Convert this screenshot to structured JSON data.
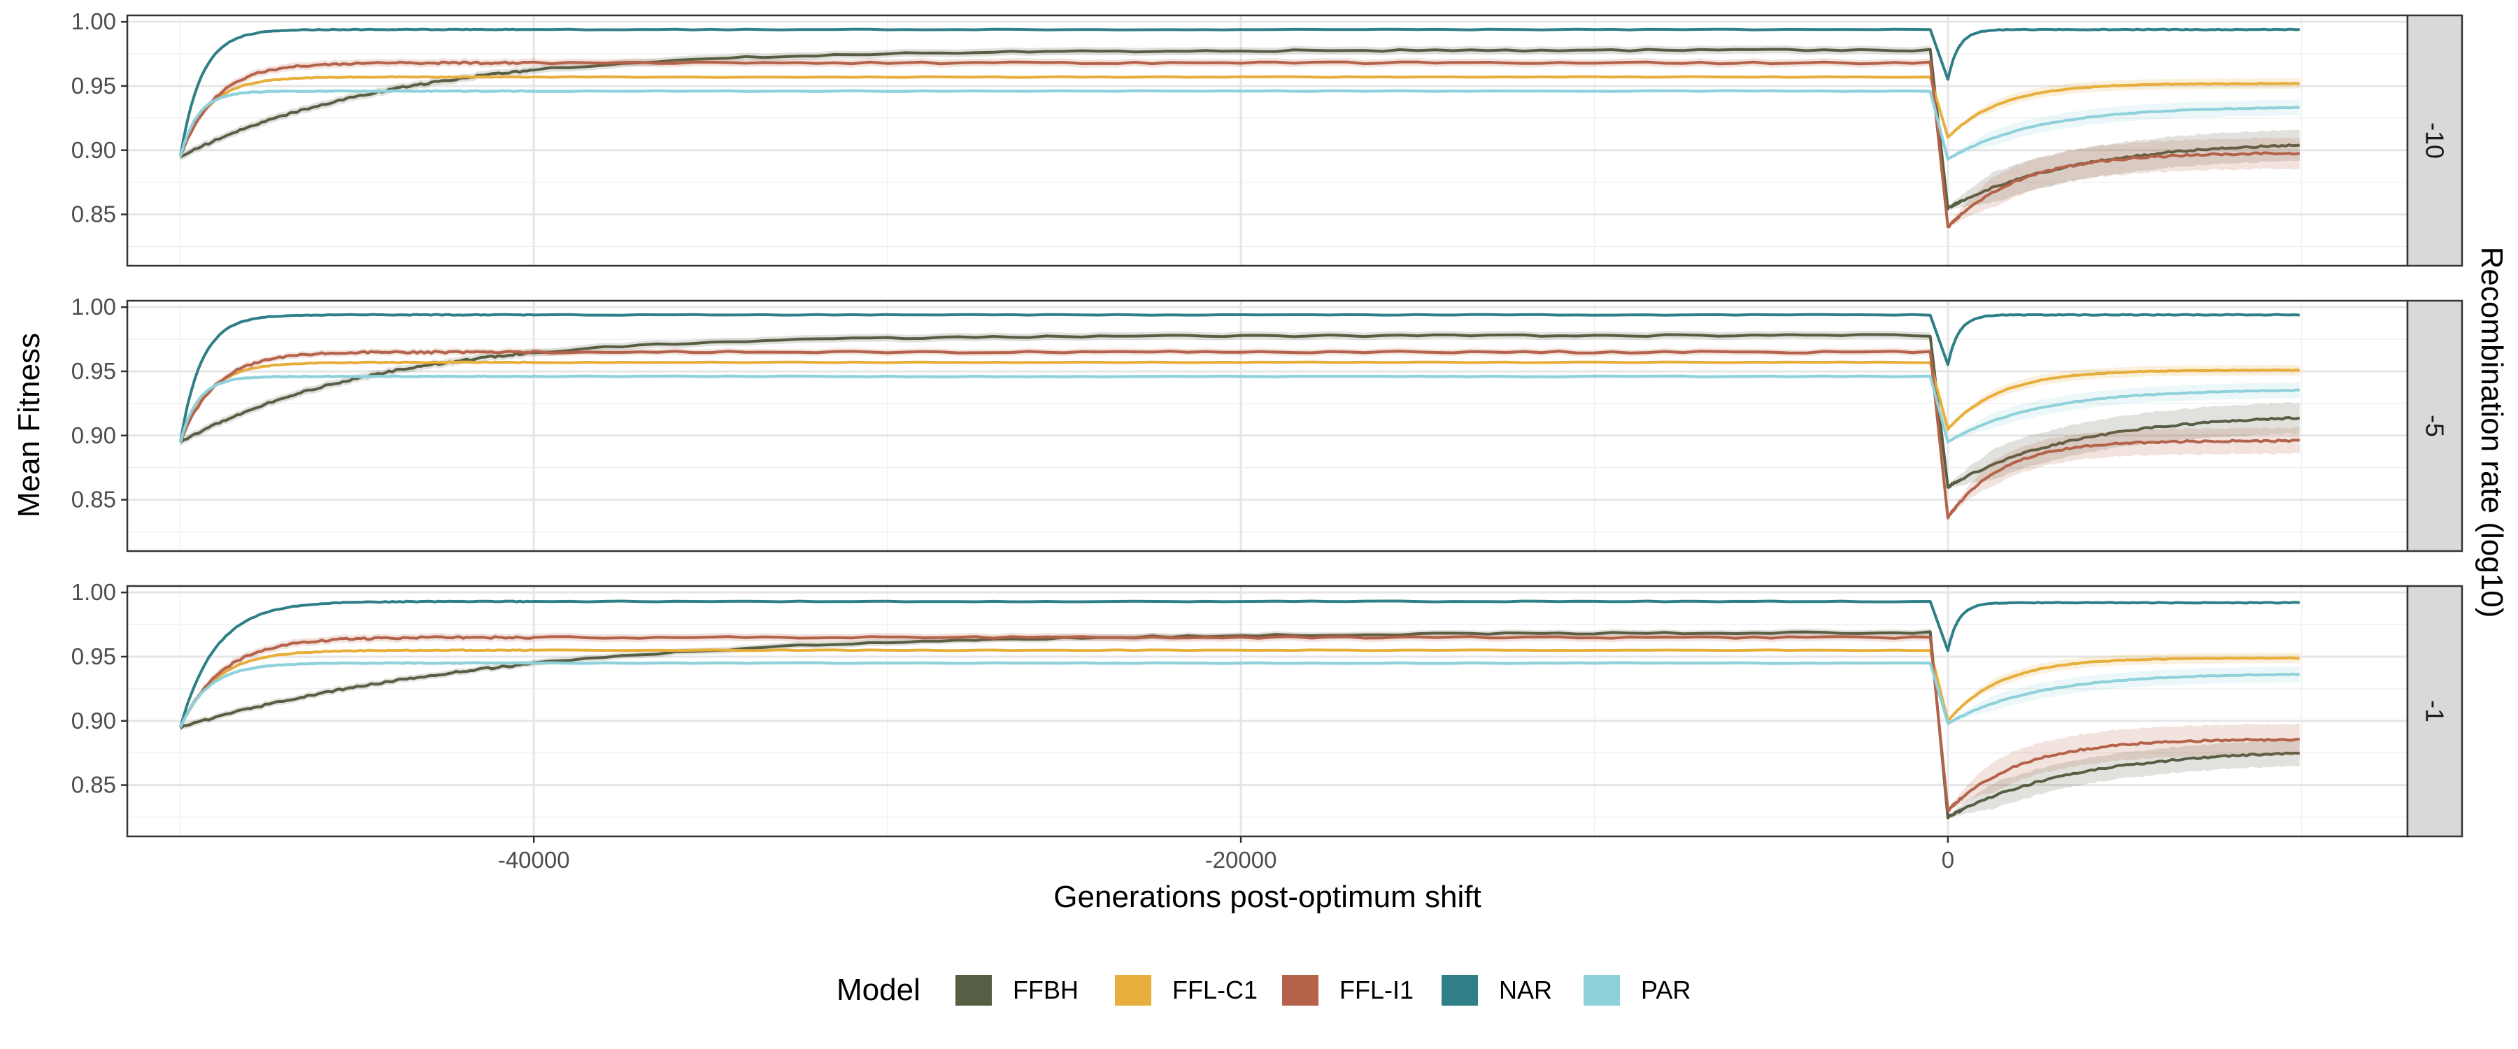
{
  "chart_data": {
    "type": "line",
    "xlabel": "Generations post-optimum shift",
    "ylabel": "Mean Fitness",
    "facet_label": "Recombination rate (log10)",
    "xlim": [
      -51500,
      13000
    ],
    "ylim": [
      0.81,
      1.005
    ],
    "x_ticks": [
      -40000,
      -20000,
      0
    ],
    "x_tick_labels": [
      "-40000",
      "-20000",
      "0"
    ],
    "y_ticks": [
      0.85,
      0.9,
      0.95,
      1.0
    ],
    "y_tick_labels": [
      "0.85",
      "0.90",
      "0.95",
      "1.00"
    ],
    "grid": true,
    "legend_position": "bottom",
    "legend": {
      "title": "Model",
      "items": [
        {
          "name": "FFBH",
          "color": "#565e43"
        },
        {
          "name": "FFL-C1",
          "color": "#e8ae3b"
        },
        {
          "name": "FFL-I1",
          "color": "#b5624a"
        },
        {
          "name": "NAR",
          "color": "#2e7f86"
        },
        {
          "name": "PAR",
          "color": "#8fd1db"
        }
      ]
    },
    "panels": [
      {
        "label": "-10",
        "series": [
          {
            "name": "FFBH",
            "start": 0.895,
            "pre_end": 0.978,
            "pre_tau": 6000,
            "drop": 0.855,
            "post_end": 0.907,
            "post_tau": 3500,
            "band": 0.012
          },
          {
            "name": "FFL-C1",
            "start": 0.895,
            "pre_end": 0.957,
            "pre_tau": 800,
            "drop": 0.91,
            "post_end": 0.952,
            "post_tau": 1500,
            "band": 0.004
          },
          {
            "name": "FFL-I1",
            "start": 0.895,
            "pre_end": 0.968,
            "pre_tau": 1000,
            "drop": 0.84,
            "post_end": 0.898,
            "post_tau": 2000,
            "band": 0.012
          },
          {
            "name": "NAR",
            "start": 0.895,
            "pre_end": 0.994,
            "pre_tau": 600,
            "drop": 0.955,
            "post_end": 0.994,
            "post_tau": 300,
            "band": 0.001
          },
          {
            "name": "PAR",
            "start": 0.895,
            "pre_end": 0.946,
            "pre_tau": 500,
            "drop": 0.893,
            "post_end": 0.934,
            "post_tau": 2500,
            "band": 0.006
          }
        ]
      },
      {
        "label": "-5",
        "series": [
          {
            "name": "FFBH",
            "start": 0.895,
            "pre_end": 0.978,
            "pre_tau": 5500,
            "drop": 0.86,
            "post_end": 0.917,
            "post_tau": 3500,
            "band": 0.012
          },
          {
            "name": "FFL-C1",
            "start": 0.895,
            "pre_end": 0.957,
            "pre_tau": 800,
            "drop": 0.905,
            "post_end": 0.951,
            "post_tau": 1500,
            "band": 0.004
          },
          {
            "name": "FFL-I1",
            "start": 0.895,
            "pre_end": 0.965,
            "pre_tau": 1000,
            "drop": 0.836,
            "post_end": 0.896,
            "post_tau": 1500,
            "band": 0.01
          },
          {
            "name": "NAR",
            "start": 0.895,
            "pre_end": 0.994,
            "pre_tau": 600,
            "drop": 0.955,
            "post_end": 0.994,
            "post_tau": 300,
            "band": 0.001
          },
          {
            "name": "PAR",
            "start": 0.895,
            "pre_end": 0.946,
            "pre_tau": 500,
            "drop": 0.895,
            "post_end": 0.936,
            "post_tau": 2500,
            "band": 0.006
          }
        ]
      },
      {
        "label": "-1",
        "series": [
          {
            "name": "FFBH",
            "start": 0.895,
            "pre_end": 0.969,
            "pre_tau": 9000,
            "drop": 0.825,
            "post_end": 0.878,
            "post_tau": 3500,
            "band": 0.01
          },
          {
            "name": "FFL-C1",
            "start": 0.895,
            "pre_end": 0.955,
            "pre_tau": 1000,
            "drop": 0.9,
            "post_end": 0.949,
            "post_tau": 1500,
            "band": 0.004
          },
          {
            "name": "FFL-I1",
            "start": 0.895,
            "pre_end": 0.965,
            "pre_tau": 1200,
            "drop": 0.83,
            "post_end": 0.886,
            "post_tau": 2000,
            "band": 0.012
          },
          {
            "name": "NAR",
            "start": 0.895,
            "pre_end": 0.993,
            "pre_tau": 1000,
            "drop": 0.955,
            "post_end": 0.992,
            "post_tau": 300,
            "band": 0.001
          },
          {
            "name": "PAR",
            "start": 0.895,
            "pre_end": 0.945,
            "pre_tau": 800,
            "drop": 0.898,
            "post_end": 0.937,
            "post_tau": 2500,
            "band": 0.006
          }
        ]
      }
    ]
  }
}
